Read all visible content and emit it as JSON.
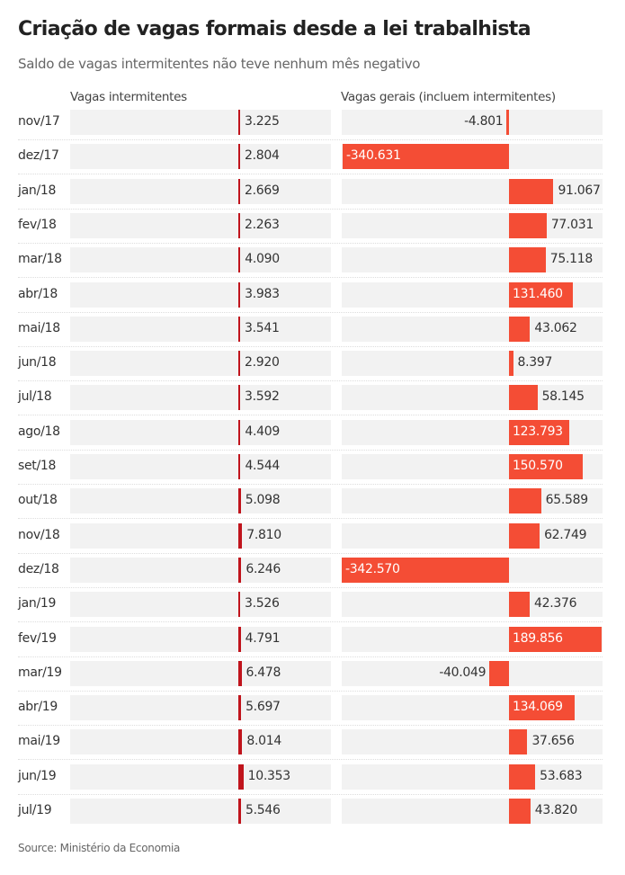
{
  "chart_data": {
    "type": "bar",
    "title": "Criação de vagas formais desde a lei trabalhista",
    "subtitle": "Saldo de vagas intermitentes não teve nenhum mês negativo",
    "source": "Source: Ministério da Economia",
    "categories": [
      "nov/17",
      "dez/17",
      "jan/18",
      "fev/18",
      "mar/18",
      "abr/18",
      "mai/18",
      "jun/18",
      "jul/18",
      "ago/18",
      "set/18",
      "out/18",
      "nov/18",
      "dez/18",
      "jan/19",
      "fev/19",
      "mar/19",
      "abr/19",
      "mai/19",
      "jun/19",
      "jul/19"
    ],
    "series": [
      {
        "name": "Vagas intermitentes",
        "color": "#c0141c",
        "values": [
          3225,
          2804,
          2669,
          2263,
          4090,
          3983,
          3541,
          2920,
          3592,
          4409,
          4544,
          5098,
          7810,
          6246,
          3526,
          4791,
          6478,
          5697,
          8014,
          10353,
          5546
        ],
        "labels": [
          "3.225",
          "2.804",
          "2.669",
          "2.263",
          "4.090",
          "3.983",
          "3.541",
          "2.920",
          "3.592",
          "4.409",
          "4.544",
          "5.098",
          "7.810",
          "6.246",
          "3.526",
          "4.791",
          "6.478",
          "5.697",
          "8.014",
          "10.353",
          "5.546"
        ]
      },
      {
        "name": "Vagas gerais (incluem intermitentes)",
        "color": "#f44d35",
        "values": [
          -4801,
          -340631,
          91067,
          77031,
          75118,
          131460,
          43062,
          8397,
          58145,
          123793,
          150570,
          65589,
          62749,
          -342570,
          42376,
          189856,
          -40049,
          134069,
          37656,
          53683,
          43820
        ],
        "labels": [
          "-4.801",
          "-340.631",
          "91.067",
          "77.031",
          "75.118",
          "131.460",
          "43.062",
          "8.397",
          "58.145",
          "123.793",
          "150.570",
          "65.589",
          "62.749",
          "-342.570",
          "42.376",
          "189.856",
          "-40.049",
          "134.069",
          "37.656",
          "53.683",
          "43.820"
        ]
      }
    ],
    "xlim": [
      -342570,
      189856
    ]
  }
}
